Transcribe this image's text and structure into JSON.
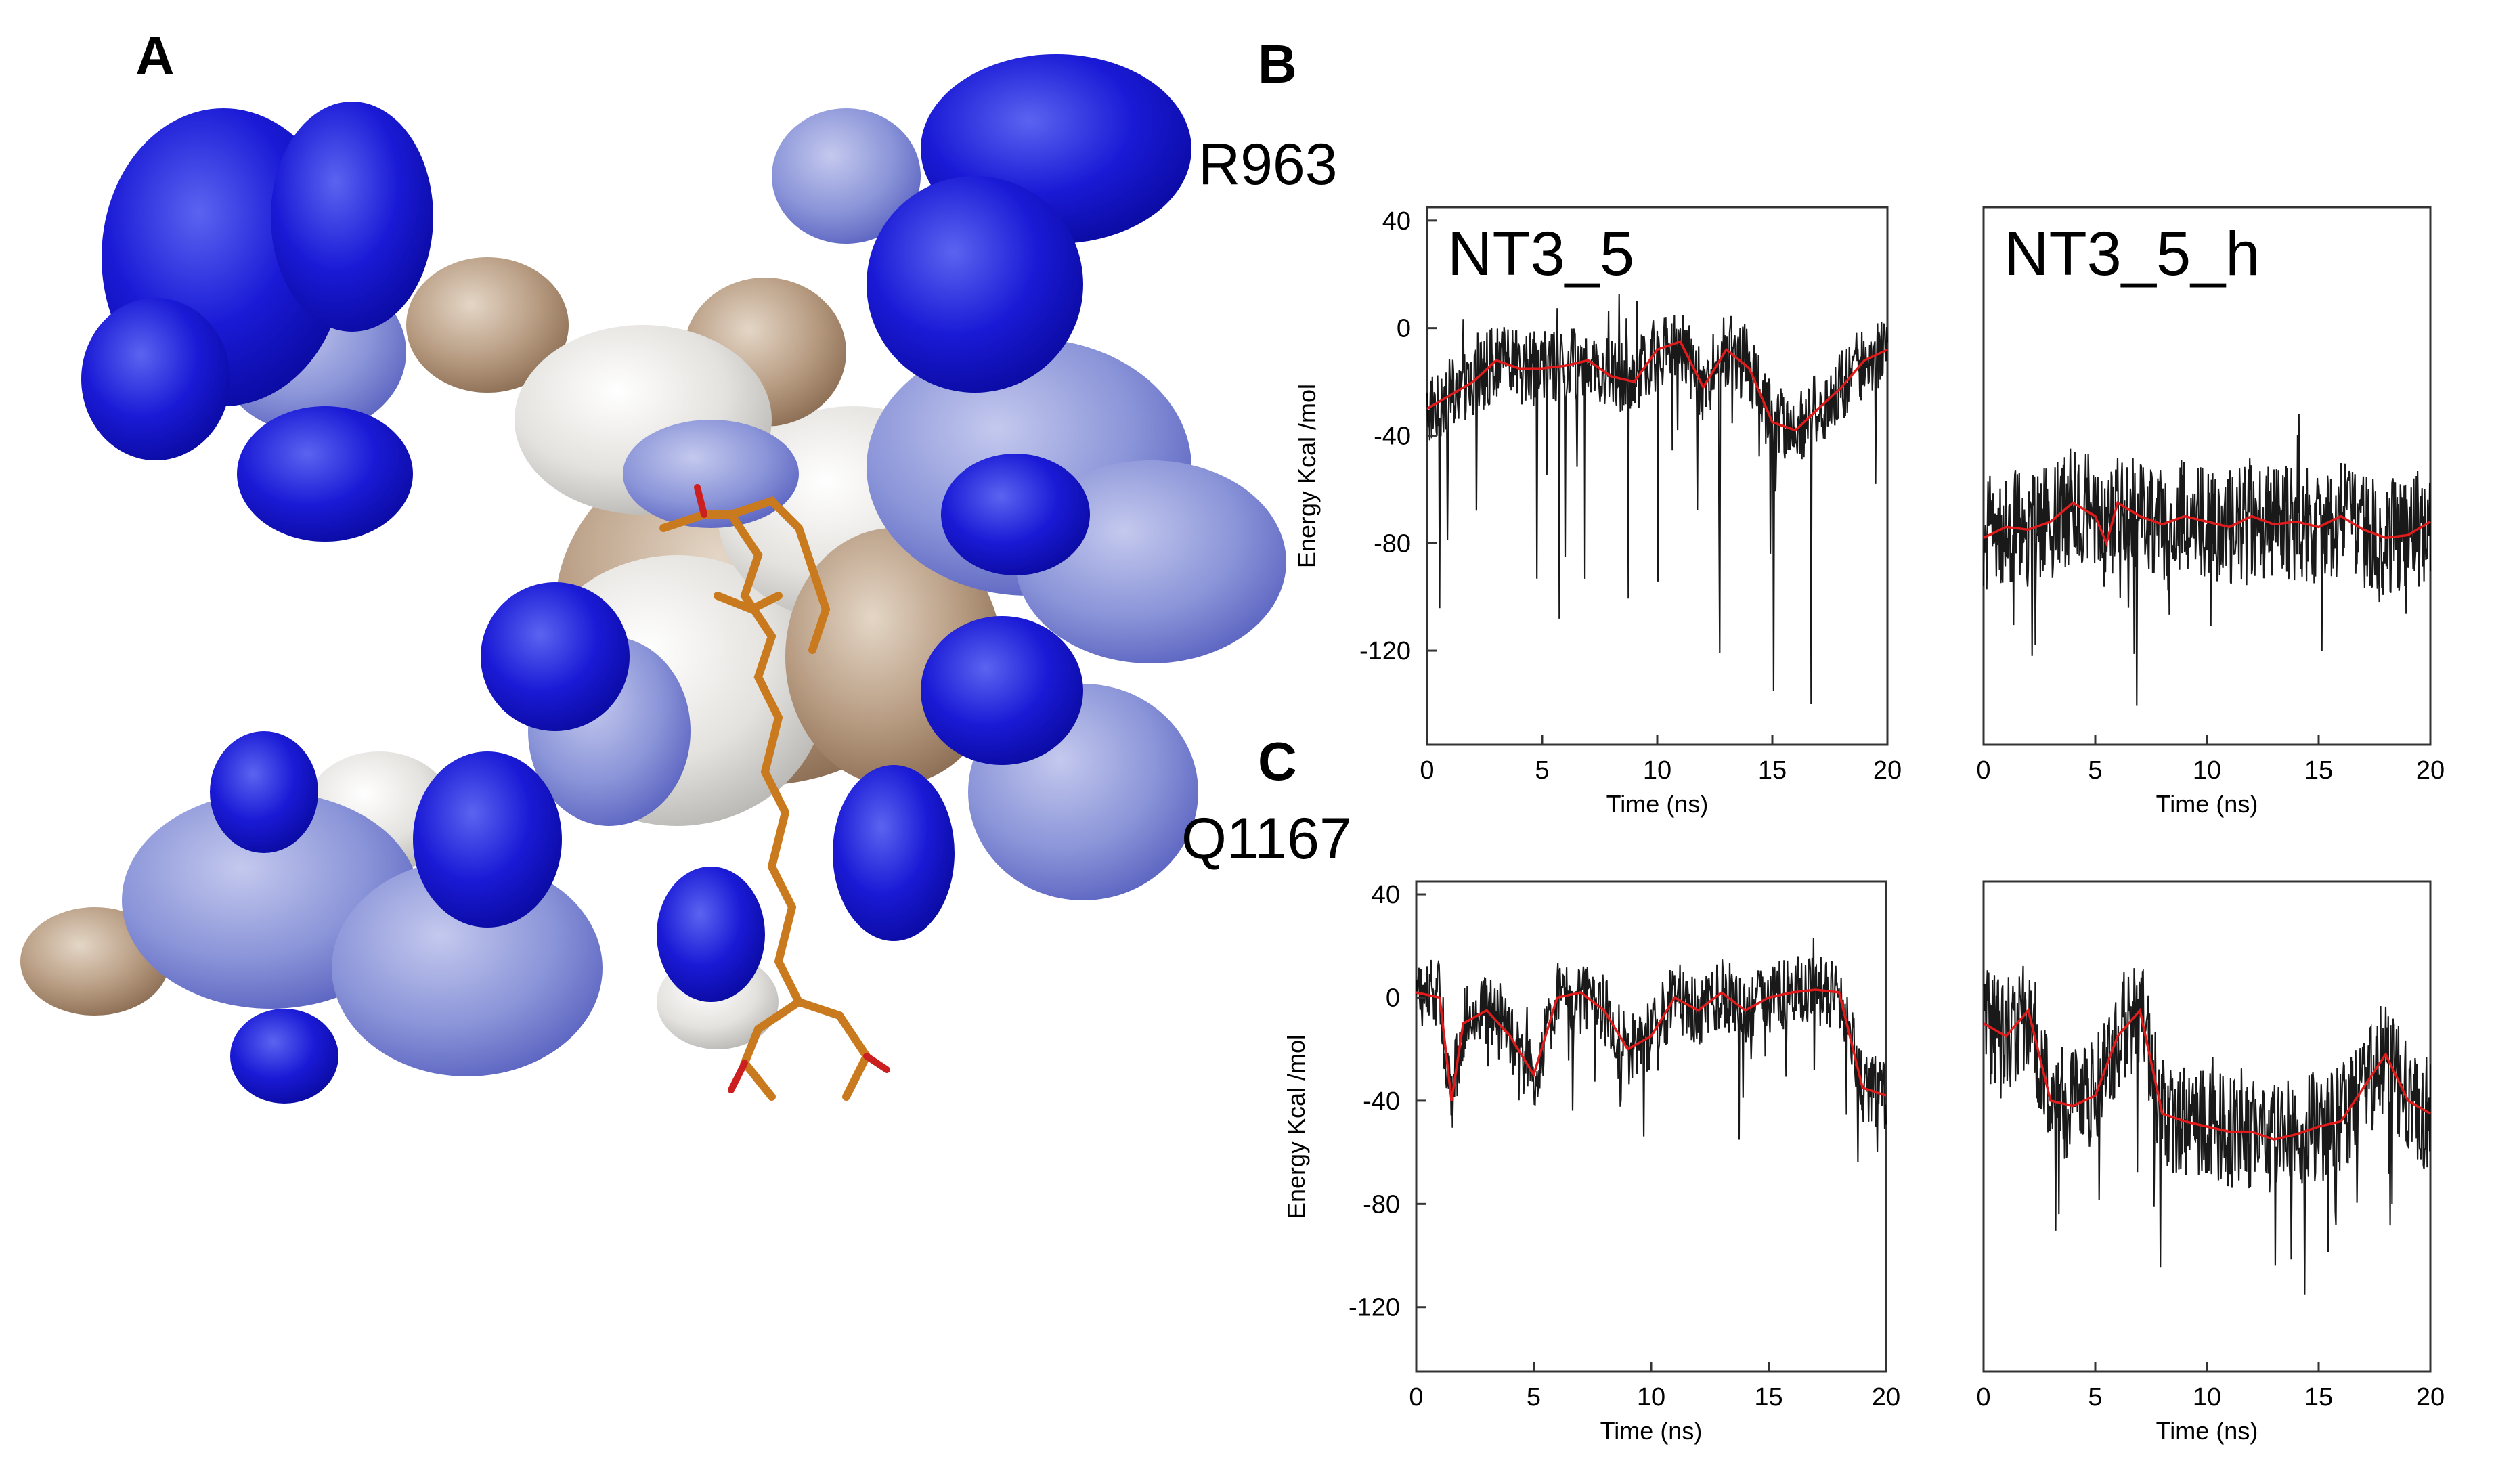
{
  "panel_labels": {
    "a": "A",
    "b": "B",
    "c": "C"
  },
  "residues": {
    "b": "R963",
    "c": "Q1167"
  },
  "colors": {
    "surface_blue": "#1a1ad6",
    "surface_light_blue": "#8a94d8",
    "surface_tan": "#b69a80",
    "surface_white": "#e4e2de",
    "ligand": "#c97a1e",
    "trace": "#000000",
    "average": "#e01b1b"
  },
  "chart_data": [
    {
      "type": "line",
      "panel": "B",
      "title": "NT3_5",
      "xlabel": "Time (ns)",
      "ylabel": "Energy Kcal /mol",
      "xlim": [
        0,
        20
      ],
      "ylim": [
        -155,
        45
      ],
      "xticks": [
        "0",
        "5",
        "10",
        "15",
        "20"
      ],
      "yticks": [
        "40",
        "0",
        "-40",
        "-80",
        "-120"
      ],
      "grid": false,
      "series": [
        {
          "values": [
            [
              0,
              -30
            ],
            [
              1,
              -25
            ],
            [
              2,
              -20
            ],
            [
              3,
              -12
            ],
            [
              4,
              -15
            ],
            [
              5,
              -15
            ],
            [
              6,
              -14
            ],
            [
              7,
              -12
            ],
            [
              8,
              -18
            ],
            [
              9,
              -20
            ],
            [
              10,
              -8
            ],
            [
              11,
              -5
            ],
            [
              12,
              -22
            ],
            [
              13,
              -8
            ],
            [
              14,
              -15
            ],
            [
              15,
              -35
            ],
            [
              16,
              -38
            ],
            [
              17,
              -30
            ],
            [
              18,
              -22
            ],
            [
              19,
              -12
            ],
            [
              20,
              -8
            ]
          ]
        }
      ]
    },
    {
      "type": "line",
      "panel": "B",
      "title": "NT3_5_h",
      "xlabel": "Time (ns)",
      "xlim": [
        0,
        20
      ],
      "ylim": [
        -155,
        45
      ],
      "xticks": [
        "0",
        "5",
        "10",
        "15",
        "20"
      ],
      "grid": false,
      "series": [
        {
          "values": [
            [
              0,
              -78
            ],
            [
              1,
              -74
            ],
            [
              2,
              -75
            ],
            [
              3,
              -72
            ],
            [
              4,
              -65
            ],
            [
              5,
              -70
            ],
            [
              5.5,
              -80
            ],
            [
              6,
              -65
            ],
            [
              7,
              -70
            ],
            [
              8,
              -73
            ],
            [
              9,
              -70
            ],
            [
              10,
              -72
            ],
            [
              11,
              -74
            ],
            [
              12,
              -70
            ],
            [
              13,
              -73
            ],
            [
              14,
              -72
            ],
            [
              15,
              -74
            ],
            [
              16,
              -70
            ],
            [
              17,
              -75
            ],
            [
              18,
              -78
            ],
            [
              19,
              -77
            ],
            [
              20,
              -72
            ]
          ]
        }
      ]
    },
    {
      "type": "line",
      "panel": "C",
      "xlabel": "Time (ns)",
      "ylabel": "Energy Kcal /mol",
      "xlim": [
        0,
        20
      ],
      "ylim": [
        -145,
        45
      ],
      "xticks": [
        "0",
        "5",
        "10",
        "15",
        "20"
      ],
      "yticks": [
        "40",
        "0",
        "-40",
        "-80",
        "-120"
      ],
      "grid": false,
      "series": [
        {
          "values": [
            [
              0,
              2
            ],
            [
              1,
              0
            ],
            [
              1.5,
              -40
            ],
            [
              2,
              -10
            ],
            [
              3,
              -5
            ],
            [
              4,
              -15
            ],
            [
              5,
              -30
            ],
            [
              6,
              0
            ],
            [
              7,
              2
            ],
            [
              8,
              -5
            ],
            [
              9,
              -20
            ],
            [
              10,
              -15
            ],
            [
              11,
              0
            ],
            [
              12,
              -5
            ],
            [
              13,
              2
            ],
            [
              14,
              -5
            ],
            [
              15,
              0
            ],
            [
              16,
              2
            ],
            [
              17,
              3
            ],
            [
              18,
              2
            ],
            [
              19,
              -35
            ],
            [
              20,
              -38
            ]
          ]
        }
      ]
    },
    {
      "type": "line",
      "panel": "C",
      "xlabel": "Time (ns)",
      "xlim": [
        0,
        20
      ],
      "ylim": [
        -145,
        45
      ],
      "xticks": [
        "0",
        "5",
        "10",
        "15",
        "20"
      ],
      "grid": false,
      "series": [
        {
          "values": [
            [
              0,
              -10
            ],
            [
              1,
              -15
            ],
            [
              2,
              -5
            ],
            [
              3,
              -40
            ],
            [
              4,
              -42
            ],
            [
              5,
              -38
            ],
            [
              6,
              -15
            ],
            [
              7,
              -5
            ],
            [
              8,
              -45
            ],
            [
              9,
              -48
            ],
            [
              10,
              -50
            ],
            [
              11,
              -52
            ],
            [
              12,
              -52
            ],
            [
              13,
              -55
            ],
            [
              14,
              -53
            ],
            [
              15,
              -50
            ],
            [
              16,
              -48
            ],
            [
              17,
              -35
            ],
            [
              18,
              -22
            ],
            [
              19,
              -40
            ],
            [
              20,
              -45
            ]
          ]
        }
      ]
    }
  ]
}
